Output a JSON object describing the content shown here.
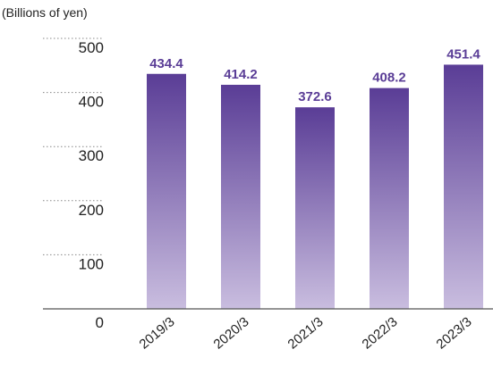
{
  "chart_data": {
    "type": "bar",
    "unit_label": "(Billions of yen)",
    "categories": [
      "2019/3",
      "2020/3",
      "2021/3",
      "2022/3",
      "2023/3"
    ],
    "values": [
      434.4,
      414.2,
      372.6,
      408.2,
      451.4
    ],
    "value_labels": [
      "434.4",
      "414.2",
      "372.6",
      "408.2",
      "451.4"
    ],
    "ylim": [
      0,
      500
    ],
    "yticks": [
      0,
      100,
      200,
      300,
      400,
      500
    ],
    "ytick_labels": [
      "0",
      "100",
      "200",
      "300",
      "400",
      "500"
    ],
    "grid": "dotted",
    "bar_color_top": "#5a3d96",
    "bar_color_bottom": "#c9bddf",
    "label_color": "#5a3d96"
  }
}
